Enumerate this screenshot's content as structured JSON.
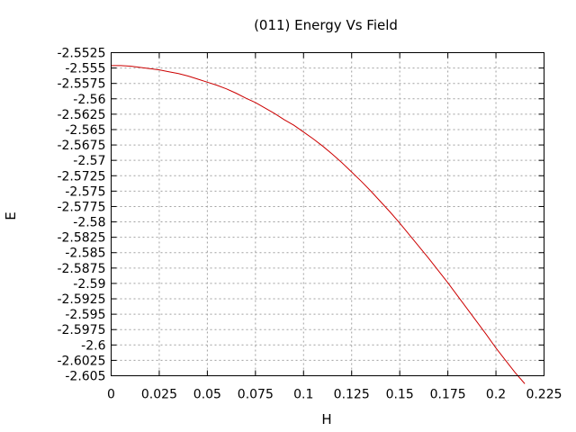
{
  "chart_data": {
    "type": "line",
    "title": "(011) Energy Vs Field",
    "xlabel": "H",
    "ylabel": "E",
    "xlim": [
      0,
      0.225
    ],
    "ylim": [
      -2.605,
      -2.5525
    ],
    "grid": true,
    "x_ticks": [
      "0",
      "0.025",
      "0.05",
      "0.075",
      "0.1",
      "0.125",
      "0.15",
      "0.175",
      "0.2",
      "0.225"
    ],
    "y_ticks": [
      "-2.5525",
      "-2.555",
      "-2.5575",
      "-2.56",
      "-2.5625",
      "-2.565",
      "-2.5675",
      "-2.57",
      "-2.5725",
      "-2.575",
      "-2.5775",
      "-2.58",
      "-2.5825",
      "-2.585",
      "-2.5875",
      "-2.59",
      "-2.5925",
      "-2.595",
      "-2.5975",
      "-2.6",
      "-2.6025",
      "-2.605"
    ],
    "series": [
      {
        "color": "#cc0000",
        "x": [
          0,
          0.005,
          0.01,
          0.015,
          0.02,
          0.025,
          0.03,
          0.035,
          0.04,
          0.045,
          0.05,
          0.055,
          0.06,
          0.065,
          0.07,
          0.075,
          0.08,
          0.085,
          0.09,
          0.095,
          0.1,
          0.105,
          0.11,
          0.115,
          0.12,
          0.125,
          0.13,
          0.135,
          0.14,
          0.145,
          0.15,
          0.155,
          0.16,
          0.165,
          0.17,
          0.175,
          0.18,
          0.185,
          0.19,
          0.195,
          0.2,
          0.205,
          0.21,
          0.215
        ],
        "y": [
          -2.5546,
          -2.5546,
          -2.5547,
          -2.5549,
          -2.5551,
          -2.5553,
          -2.5556,
          -2.5559,
          -2.5563,
          -2.5568,
          -2.5573,
          -2.5578,
          -2.5584,
          -2.5591,
          -2.5599,
          -2.5606,
          -2.5615,
          -2.5624,
          -2.5634,
          -2.5643,
          -2.5654,
          -2.5665,
          -2.5677,
          -2.569,
          -2.5704,
          -2.5719,
          -2.5734,
          -2.575,
          -2.5767,
          -2.5784,
          -2.5802,
          -2.5821,
          -2.584,
          -2.5859,
          -2.5879,
          -2.5899,
          -2.592,
          -2.5941,
          -2.5962,
          -2.5983,
          -2.6005,
          -2.6025,
          -2.6045,
          -2.6063
        ]
      }
    ]
  }
}
